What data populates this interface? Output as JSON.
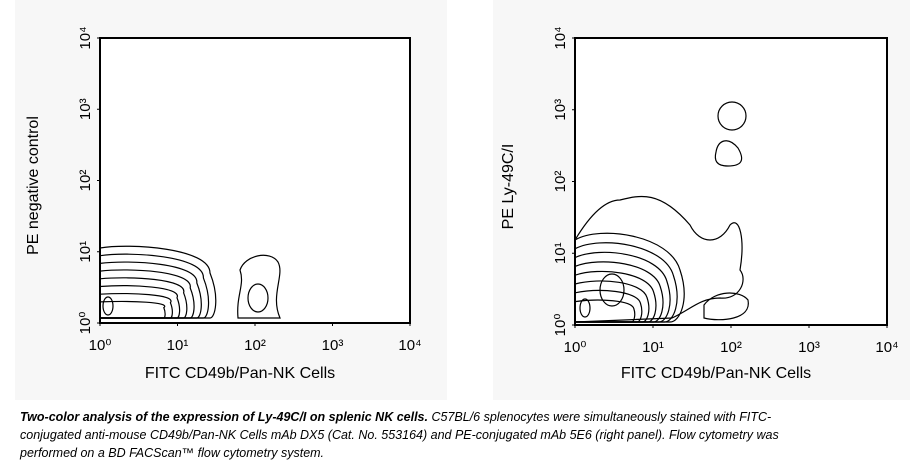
{
  "chart_data": [
    {
      "type": "contour",
      "xlabel": "FITC CD49b/Pan-NK Cells",
      "ylabel": "PE negative control",
      "xscale": "log",
      "yscale": "log",
      "xlim": [
        1,
        10000
      ],
      "ylim": [
        1,
        10000
      ],
      "xticks": [
        {
          "value": 1,
          "label": "10⁰"
        },
        {
          "value": 10,
          "label": "10¹"
        },
        {
          "value": 100,
          "label": "10²"
        },
        {
          "value": 1000,
          "label": "10³"
        },
        {
          "value": 10000,
          "label": "10⁴"
        }
      ],
      "yticks": [
        {
          "value": 1,
          "label": "10⁰"
        },
        {
          "value": 10,
          "label": "10¹"
        },
        {
          "value": 100,
          "label": "10²"
        },
        {
          "value": 1000,
          "label": "10³"
        },
        {
          "value": 10000,
          "label": "10⁴"
        }
      ]
    },
    {
      "type": "contour",
      "xlabel": "FITC CD49b/Pan-NK Cells",
      "ylabel": "PE Ly-49C/I",
      "xscale": "log",
      "yscale": "log",
      "xlim": [
        1,
        10000
      ],
      "ylim": [
        1,
        10000
      ],
      "xticks": [
        {
          "value": 1,
          "label": "10⁰"
        },
        {
          "value": 10,
          "label": "10¹"
        },
        {
          "value": 100,
          "label": "10²"
        },
        {
          "value": 1000,
          "label": "10³"
        },
        {
          "value": 10000,
          "label": "10⁴"
        }
      ],
      "yticks": [
        {
          "value": 1,
          "label": "10⁰"
        },
        {
          "value": 10,
          "label": "10¹"
        },
        {
          "value": 100,
          "label": "10²"
        },
        {
          "value": 1000,
          "label": "10³"
        },
        {
          "value": 10000,
          "label": "10⁴"
        }
      ]
    }
  ],
  "caption": {
    "title": "Two-color analysis of the expression of Ly-49C/I on splenic NK cells.",
    "text": "C57BL/6 splenocytes were simultaneously stained with FITC-conjugated anti-mouse CD49b/Pan-NK Cells mAb DX5 (Cat. No. 553164) and PE-conjugated mAb 5E6 (right panel). Flow cytometry was performed on a BD FACScan™ flow cytometry system."
  }
}
